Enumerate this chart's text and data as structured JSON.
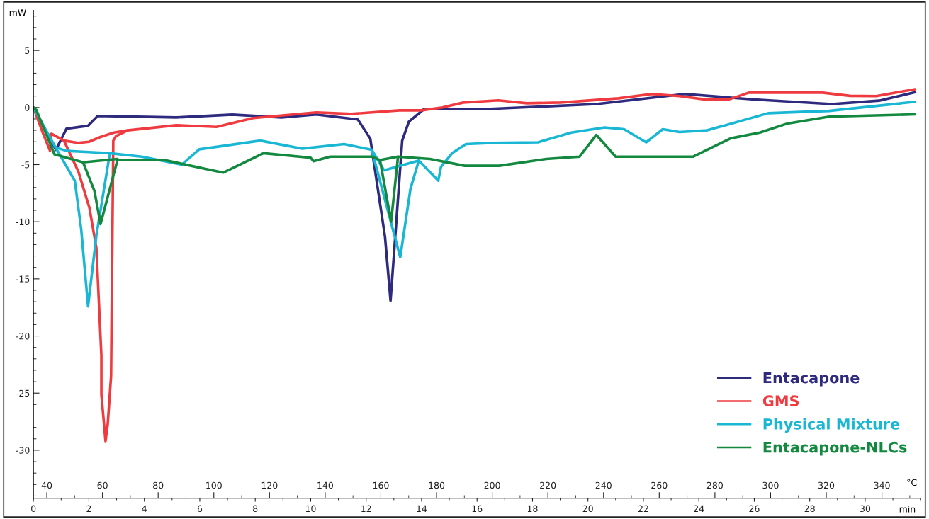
{
  "chart_data": {
    "type": "line",
    "xlabel": "min",
    "ylabel": "mW",
    "x2label": "°C",
    "xlim": [
      0,
      32
    ],
    "xticks": [
      0,
      2,
      4,
      6,
      8,
      10,
      12,
      14,
      16,
      18,
      20,
      22,
      24,
      26,
      28,
      30
    ],
    "x2lim": [
      35.2,
      353.9
    ],
    "x2ticks": [
      40,
      60,
      80,
      100,
      120,
      140,
      160,
      180,
      200,
      220,
      240,
      260,
      280,
      300,
      320,
      340
    ],
    "ylim": [
      -34.2,
      8.5
    ],
    "yticks": [
      5,
      0,
      -5,
      -10,
      -15,
      -20,
      -25,
      -30
    ],
    "grid": false,
    "legend": "bottom right",
    "marker": "none",
    "line_style": "solid",
    "series": [
      {
        "name": "Entacapone",
        "color": "#2e2a7e",
        "x": [
          0,
          0.81,
          1.19,
          1.97,
          2.32,
          5.15,
          7.17,
          8.94,
          10.2,
          11.7,
          12.15,
          12.68,
          12.88,
          13.05,
          13.3,
          13.54,
          14.1,
          16.5,
          20.3,
          23.5,
          26.0,
          28.8,
          30.5,
          31.8
        ],
        "values": [
          0,
          -3.7,
          -1.86,
          -1.6,
          -0.74,
          -0.87,
          -0.62,
          -0.87,
          -0.62,
          -1.05,
          -2.73,
          -11.3,
          -16.9,
          -11.3,
          -2.9,
          -1.24,
          -0.12,
          -0.12,
          0.3,
          1.18,
          0.7,
          0.3,
          0.6,
          1.33
        ]
      },
      {
        "name": "GMS",
        "color": "#ef3b3f",
        "x": [
          0,
          0.35,
          0.6,
          0.65,
          1.1,
          1.6,
          2.0,
          2.4,
          2.9,
          3.4,
          5.15,
          6.6,
          7.93,
          10.2,
          11.46,
          13.2,
          14.0,
          14.75,
          15.5,
          16.77,
          17.8,
          19.0,
          21.1,
          22.3,
          23.3,
          24.3,
          25.05,
          25.8,
          28.46,
          29.45,
          30.4,
          31.8
        ],
        "values": [
          0,
          -2.3,
          -3.8,
          -2.3,
          -2.9,
          -3.1,
          -3.0,
          -2.6,
          -2.2,
          -2.0,
          -1.55,
          -1.7,
          -0.93,
          -0.43,
          -0.56,
          -0.25,
          -0.25,
          0,
          0.43,
          0.62,
          0.37,
          0.43,
          0.8,
          1.18,
          1.0,
          0.68,
          0.68,
          1.3,
          1.3,
          1.02,
          1.0,
          1.6
        ]
      },
      {
        "color": "#ef3b3f",
        "x": [
          1.1,
          1.62,
          2.02,
          2.27,
          2.45,
          2.45,
          2.6,
          2.68,
          2.8,
          2.88,
          2.98,
          3.4
        ],
        "values": [
          -2.9,
          -5.6,
          -8.8,
          -12.3,
          -21.7,
          -25.1,
          -29.2,
          -27.7,
          -23.5,
          -2.9,
          -2.5,
          -2.0
        ]
      },
      {
        "name": "Physical Mixture",
        "color": "#1ab7d4",
        "x": [
          0,
          0.8,
          1.2,
          2.0,
          2.75,
          3.9,
          5.35,
          5.98,
          8.18,
          9.7,
          11.2,
          12.2,
          12.65,
          13.9,
          14.6,
          14.7,
          15.1,
          15.6,
          16.5,
          18.2,
          19.4,
          20.6,
          21.3,
          22.1,
          22.7,
          23.3,
          24.3,
          26.5,
          28.7,
          31.8
        ],
        "values": [
          0,
          -3.5,
          -3.8,
          -3.9,
          -4.0,
          -4.3,
          -5.0,
          -3.66,
          -2.9,
          -3.6,
          -3.2,
          -3.7,
          -5.5,
          -4.65,
          -6.4,
          -5.2,
          -4.0,
          -3.2,
          -3.1,
          -3.05,
          -2.2,
          -1.75,
          -1.9,
          -3.05,
          -1.9,
          -2.15,
          -2.0,
          -0.5,
          -0.3,
          0.5
        ]
      },
      {
        "color": "#1ab7d4",
        "x": [
          0.8,
          1.49,
          1.72,
          1.97,
          2.27,
          2.75
        ],
        "values": [
          -3.5,
          -6.4,
          -10.6,
          -17.4,
          -11.2,
          -4.1
        ]
      },
      {
        "color": "#1ab7d4",
        "x": [
          12.2,
          13.23,
          13.6,
          13.9
        ],
        "values": [
          -3.7,
          -13.1,
          -7.1,
          -4.65
        ]
      },
      {
        "name": "Entacapone-NLCs",
        "color": "#13893f",
        "x": [
          0,
          0.1,
          0.76,
          1.79,
          2.2,
          2.42,
          3.03,
          4.72,
          6.84,
          8.3,
          10.0,
          10.1,
          10.7,
          12.2,
          12.5,
          12.9,
          13.15,
          14.3,
          15.55,
          16.8,
          18.5,
          19.7,
          20.3,
          21.0,
          23.8,
          25.15,
          26.2,
          27.2,
          28.7,
          31.8
        ],
        "values": [
          0,
          -0.2,
          -4.1,
          -4.8,
          -7.3,
          -10.2,
          -4.6,
          -4.6,
          -5.7,
          -4.0,
          -4.4,
          -4.7,
          -4.3,
          -4.3,
          -4.6,
          -10.0,
          -4.3,
          -4.5,
          -5.1,
          -5.1,
          -4.5,
          -4.3,
          -2.4,
          -4.3,
          -4.3,
          -2.7,
          -2.2,
          -1.4,
          -0.8,
          -0.6
        ]
      },
      {
        "color": "#13893f",
        "x": [
          1.79,
          3.03
        ],
        "values": [
          -4.8,
          -4.5
        ]
      },
      {
        "color": "#13893f",
        "x": [
          12.5,
          13.15
        ],
        "values": [
          -4.6,
          -4.3
        ]
      }
    ]
  }
}
